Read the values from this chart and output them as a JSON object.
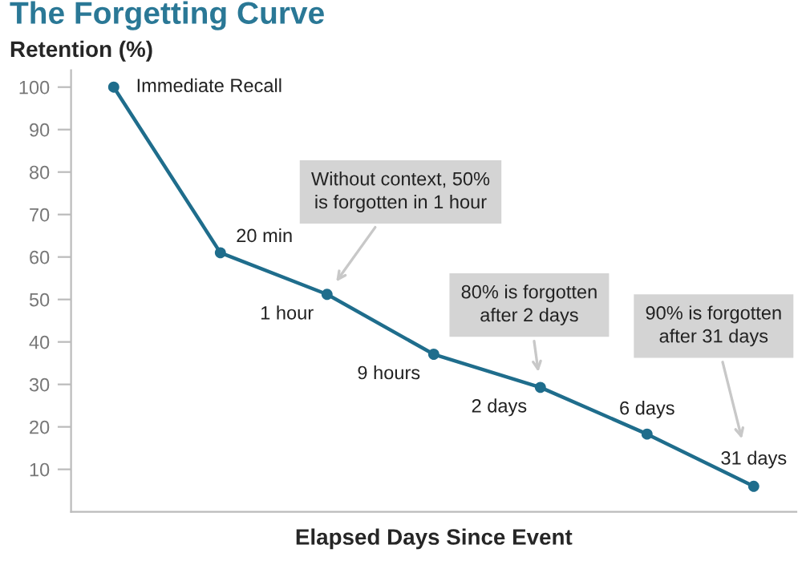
{
  "chart_data": {
    "type": "line",
    "title": "The Forgetting Curve",
    "ylabel": "Retention (%)",
    "xlabel": "Elapsed Days Since Event",
    "categories": [
      null,
      null,
      null,
      null,
      null,
      null,
      null
    ],
    "series": [
      {
        "color": "#1f6d8c",
        "values": [
          100,
          61,
          51.2,
          37.1,
          29.3,
          18.3,
          6
        ]
      }
    ],
    "ylim": [
      0,
      104
    ],
    "yticks": [
      10,
      20,
      30,
      40,
      50,
      60,
      70,
      80,
      90,
      100
    ],
    "marker": "circle",
    "line_style": "solid",
    "annotations": [
      "Immediate Recall",
      "20 min",
      "1 hour",
      "9 hours",
      "2 days",
      "6 days",
      "31 days",
      "Without context, 50%\nis forgotten in 1 hour",
      "80% is forgotten\nafter 2 days",
      "90% is forgotten\nafter 31 days"
    ]
  }
}
